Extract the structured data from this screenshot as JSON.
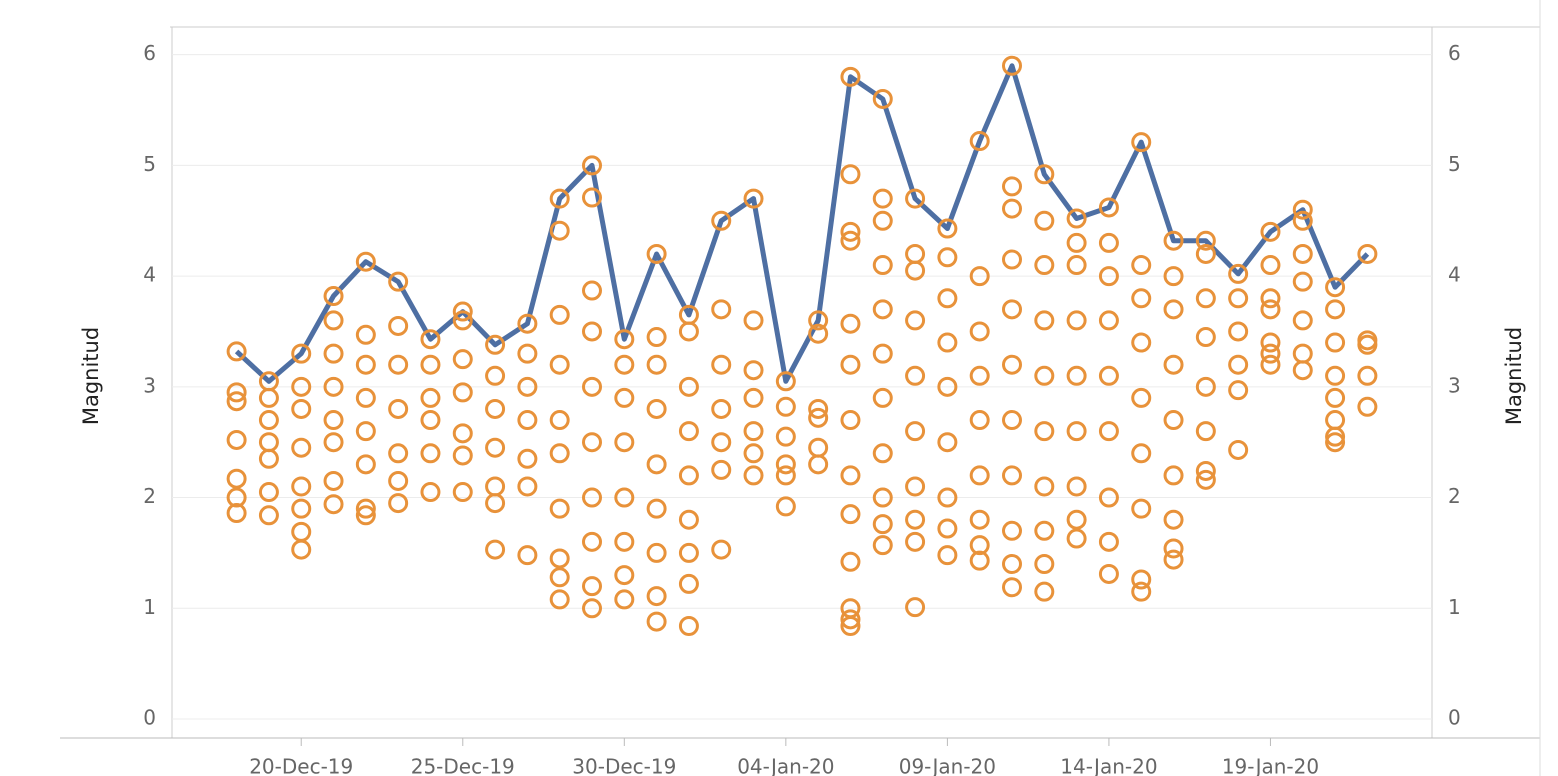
{
  "chart_data": {
    "type": "scatter-line",
    "y_label": "Magnitud",
    "y2_label": "Magnitud",
    "xlim": [
      "2019-12-16",
      "2020-01-24"
    ],
    "xticks": [
      {
        "value": "2019-12-20",
        "label": "20-Dec-19"
      },
      {
        "value": "2019-12-25",
        "label": "25-Dec-19"
      },
      {
        "value": "2019-12-30",
        "label": "30-Dec-19"
      },
      {
        "value": "2020-01-04",
        "label": "04-Jan-20"
      },
      {
        "value": "2020-01-09",
        "label": "09-Jan-20"
      },
      {
        "value": "2020-01-14",
        "label": "14-Jan-20"
      },
      {
        "value": "2020-01-19",
        "label": "19-Jan-20"
      }
    ],
    "ylim": [
      0,
      6.25
    ],
    "yticks": [
      0,
      1,
      2,
      3,
      4,
      5,
      6
    ],
    "y2lim": [
      0,
      6.25
    ],
    "y2ticks": [
      0,
      1,
      2,
      3,
      4,
      5,
      6
    ],
    "grid": true,
    "series": [
      {
        "type": "scatter",
        "color": "#e8923a",
        "x": [
          "2019-12-18",
          "2019-12-19",
          "2019-12-20",
          "2019-12-21",
          "2019-12-22",
          "2019-12-23",
          "2019-12-24",
          "2019-12-25",
          "2019-12-26",
          "2019-12-27",
          "2019-12-28",
          "2019-12-29",
          "2019-12-30",
          "2019-12-31",
          "2020-01-01",
          "2020-01-02",
          "2020-01-03",
          "2020-01-04",
          "2020-01-05",
          "2020-01-06",
          "2020-01-07",
          "2020-01-08",
          "2020-01-09",
          "2020-01-10",
          "2020-01-11",
          "2020-01-12",
          "2020-01-13",
          "2020-01-14",
          "2020-01-15",
          "2020-01-16",
          "2020-01-17",
          "2020-01-18",
          "2020-01-19",
          "2020-01-20",
          "2020-01-21",
          "2020-01-22"
        ],
        "values": [
          [
            3.32,
            2.95,
            2.87,
            2.52,
            2.17,
            2.0,
            1.86
          ],
          [
            3.05,
            2.9,
            2.7,
            2.5,
            2.35,
            2.05,
            1.84
          ],
          [
            3.3,
            3.0,
            2.8,
            2.45,
            2.1,
            1.9,
            1.69,
            1.53
          ],
          [
            3.82,
            3.6,
            3.3,
            3.0,
            2.7,
            2.5,
            2.15,
            1.94
          ],
          [
            4.13,
            3.47,
            3.2,
            2.9,
            2.6,
            2.3,
            1.9,
            1.84
          ],
          [
            3.95,
            3.55,
            3.2,
            2.8,
            2.4,
            2.15,
            1.95
          ],
          [
            3.43,
            3.2,
            2.9,
            2.7,
            2.4,
            2.05
          ],
          [
            3.68,
            3.6,
            3.25,
            2.95,
            2.58,
            2.38,
            2.05
          ],
          [
            3.38,
            3.1,
            2.8,
            2.45,
            2.1,
            1.95,
            1.53
          ],
          [
            3.57,
            3.3,
            3.0,
            2.7,
            2.35,
            2.1,
            1.48
          ],
          [
            4.7,
            4.41,
            3.65,
            3.2,
            2.7,
            2.4,
            1.9,
            1.45,
            1.28,
            1.08
          ],
          [
            5.0,
            4.71,
            3.87,
            3.5,
            3.0,
            2.5,
            2.0,
            1.6,
            1.2,
            1.0
          ],
          [
            3.43,
            3.2,
            2.9,
            2.5,
            2.0,
            1.6,
            1.3,
            1.08
          ],
          [
            4.2,
            3.45,
            3.2,
            2.8,
            2.3,
            1.9,
            1.5,
            1.11,
            0.88
          ],
          [
            3.65,
            3.5,
            3.0,
            2.6,
            2.2,
            1.8,
            1.5,
            1.22,
            0.84
          ],
          [
            4.5,
            3.7,
            3.2,
            2.8,
            2.5,
            2.25,
            1.53
          ],
          [
            4.7,
            3.6,
            3.15,
            2.9,
            2.6,
            2.4,
            2.2
          ],
          [
            3.05,
            2.82,
            2.55,
            2.3,
            2.2,
            1.92
          ],
          [
            3.6,
            3.48,
            2.8,
            2.72,
            2.45,
            2.3
          ],
          [
            5.8,
            4.92,
            4.4,
            4.32,
            3.57,
            3.2,
            2.7,
            2.2,
            1.85,
            1.42,
            1.0,
            0.9,
            0.84
          ],
          [
            5.6,
            4.7,
            4.5,
            4.1,
            3.7,
            3.3,
            2.9,
            2.4,
            2.0,
            1.76,
            1.57
          ],
          [
            4.7,
            4.2,
            4.05,
            3.6,
            3.1,
            2.6,
            2.1,
            1.8,
            1.6,
            1.01
          ],
          [
            4.43,
            4.17,
            3.8,
            3.4,
            3.0,
            2.5,
            2.0,
            1.72,
            1.48
          ],
          [
            5.22,
            4.0,
            3.5,
            3.1,
            2.7,
            2.2,
            1.8,
            1.57,
            1.43
          ],
          [
            5.9,
            4.81,
            4.61,
            4.15,
            3.7,
            3.2,
            2.7,
            2.2,
            1.7,
            1.4,
            1.19
          ],
          [
            4.92,
            4.5,
            4.1,
            3.6,
            3.1,
            2.6,
            2.1,
            1.7,
            1.4,
            1.15
          ],
          [
            4.52,
            4.3,
            4.1,
            3.6,
            3.1,
            2.6,
            2.1,
            1.8,
            1.63
          ],
          [
            4.62,
            4.3,
            4.0,
            3.6,
            3.1,
            2.6,
            2.0,
            1.6,
            1.31
          ],
          [
            5.21,
            4.1,
            3.8,
            3.4,
            2.9,
            2.4,
            1.9,
            1.26,
            1.15
          ],
          [
            4.32,
            4.0,
            3.7,
            3.2,
            2.7,
            2.2,
            1.8,
            1.54,
            1.44
          ],
          [
            4.32,
            4.2,
            3.8,
            3.45,
            3.0,
            2.6,
            2.24,
            2.16
          ],
          [
            4.02,
            3.8,
            3.5,
            3.2,
            2.97,
            2.43
          ],
          [
            4.4,
            4.1,
            3.8,
            3.7,
            3.4,
            3.3,
            3.2
          ],
          [
            4.6,
            4.5,
            4.2,
            3.95,
            3.6,
            3.3,
            3.15
          ],
          [
            3.9,
            3.7,
            3.4,
            3.1,
            2.9,
            2.7,
            2.55,
            2.5
          ],
          [
            4.2,
            3.42,
            3.38,
            3.1,
            2.82
          ]
        ]
      },
      {
        "type": "line",
        "axis": "y2",
        "color": "#4e6fa3",
        "x": [
          "2019-12-18",
          "2019-12-19",
          "2019-12-20",
          "2019-12-21",
          "2019-12-22",
          "2019-12-23",
          "2019-12-24",
          "2019-12-25",
          "2019-12-26",
          "2019-12-27",
          "2019-12-28",
          "2019-12-29",
          "2019-12-30",
          "2019-12-31",
          "2020-01-01",
          "2020-01-02",
          "2020-01-03",
          "2020-01-04",
          "2020-01-05",
          "2020-01-06",
          "2020-01-07",
          "2020-01-08",
          "2020-01-09",
          "2020-01-10",
          "2020-01-11",
          "2020-01-12",
          "2020-01-13",
          "2020-01-14",
          "2020-01-15",
          "2020-01-16",
          "2020-01-17",
          "2020-01-18",
          "2020-01-19",
          "2020-01-20",
          "2020-01-21",
          "2020-01-22"
        ],
        "values": [
          3.32,
          3.05,
          3.3,
          3.82,
          4.13,
          3.95,
          3.43,
          3.68,
          3.38,
          3.57,
          4.7,
          5.0,
          3.43,
          4.2,
          3.65,
          4.5,
          4.7,
          3.05,
          3.6,
          5.8,
          5.6,
          4.7,
          4.43,
          5.22,
          5.9,
          4.92,
          4.52,
          4.62,
          5.21,
          4.32,
          4.32,
          4.02,
          4.4,
          4.6,
          3.9,
          4.2
        ]
      }
    ]
  }
}
